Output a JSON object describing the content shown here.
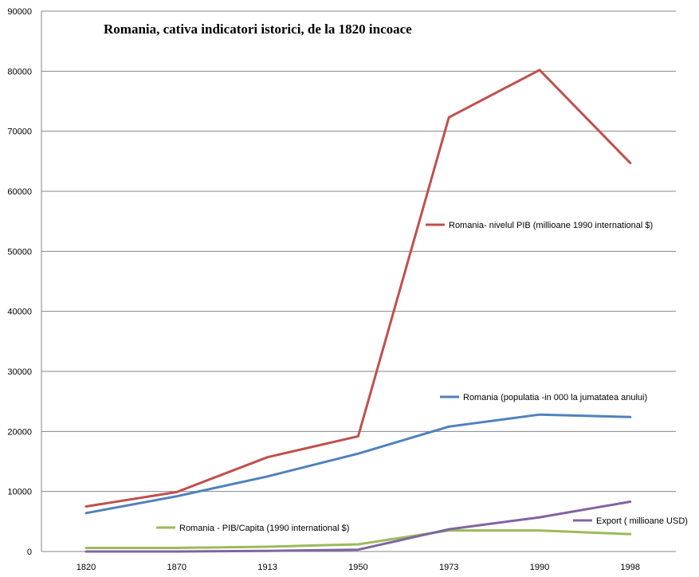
{
  "chart_data": {
    "type": "line",
    "title": "Romania, cativa indicatori istorici, de la  1820 incoace",
    "xlabel": "",
    "ylabel": "",
    "categories": [
      "1820",
      "1870",
      "1913",
      "1950",
      "1973",
      "1990",
      "1998"
    ],
    "ylim": [
      0,
      90000
    ],
    "yticks": [
      "0",
      "10000",
      "20000",
      "30000",
      "40000",
      "50000",
      "60000",
      "70000",
      "80000",
      "90000"
    ],
    "grid": true,
    "series": [
      {
        "name": "Romania- nivelul PIB (millioane 1990 international $)",
        "color": "#c0504d",
        "values": [
          7500,
          9900,
          15700,
          19200,
          72300,
          80200,
          64700
        ]
      },
      {
        "name": "Romania (populatia -in 000 la jumatatea anului)",
        "color": "#4f81bd",
        "values": [
          6400,
          9200,
          12500,
          16300,
          20800,
          22800,
          22400
        ]
      },
      {
        "name": "Romania - PIB/Capita (1990 international $)",
        "color": "#9bbb59",
        "values": [
          600,
          600,
          800,
          1200,
          3500,
          3500,
          2900
        ]
      },
      {
        "name": "Export ( millioane USD)",
        "color": "#8064a2",
        "values": [
          0,
          0,
          100,
          300,
          3700,
          5700,
          8300
        ]
      }
    ]
  }
}
